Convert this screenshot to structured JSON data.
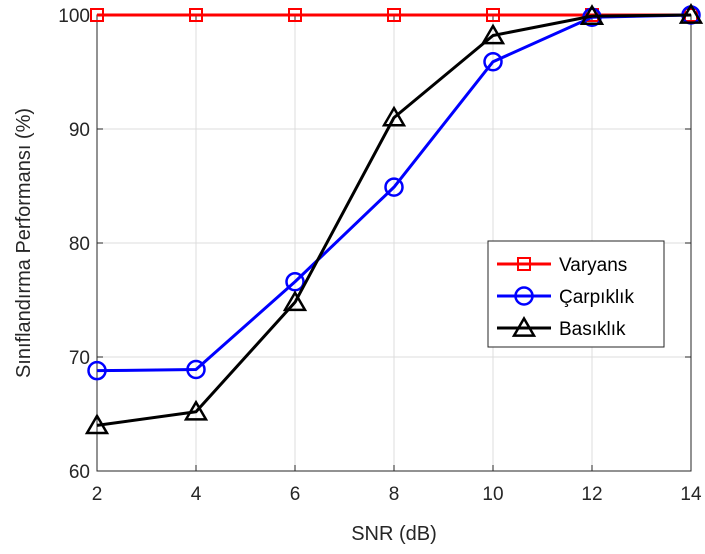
{
  "chart_data": {
    "type": "line",
    "title": "",
    "xlabel": "SNR (dB)",
    "ylabel": "Sınıflandırma Performansı (%)",
    "x": [
      2,
      4,
      6,
      8,
      10,
      12,
      14
    ],
    "xlim": [
      2,
      14
    ],
    "ylim": [
      60,
      100
    ],
    "xticks": [
      "2",
      "4",
      "6",
      "8",
      "10",
      "12",
      "14"
    ],
    "yticks": [
      "60",
      "70",
      "80",
      "90",
      "100"
    ],
    "grid": true,
    "legend_position": "right, middle",
    "series": [
      {
        "name": "Varyans",
        "color": "#ff0000",
        "marker": "square",
        "values": [
          100,
          100,
          100,
          100,
          100,
          100,
          100
        ]
      },
      {
        "name": "Çarpıklık",
        "color": "#0000ff",
        "marker": "circle",
        "values": [
          68.8,
          68.9,
          76.6,
          84.9,
          95.9,
          99.8,
          100
        ]
      },
      {
        "name": "Basıklık",
        "color": "#000000",
        "marker": "triangle",
        "values": [
          64.0,
          65.2,
          74.8,
          91.0,
          98.2,
          99.9,
          100
        ]
      }
    ]
  }
}
